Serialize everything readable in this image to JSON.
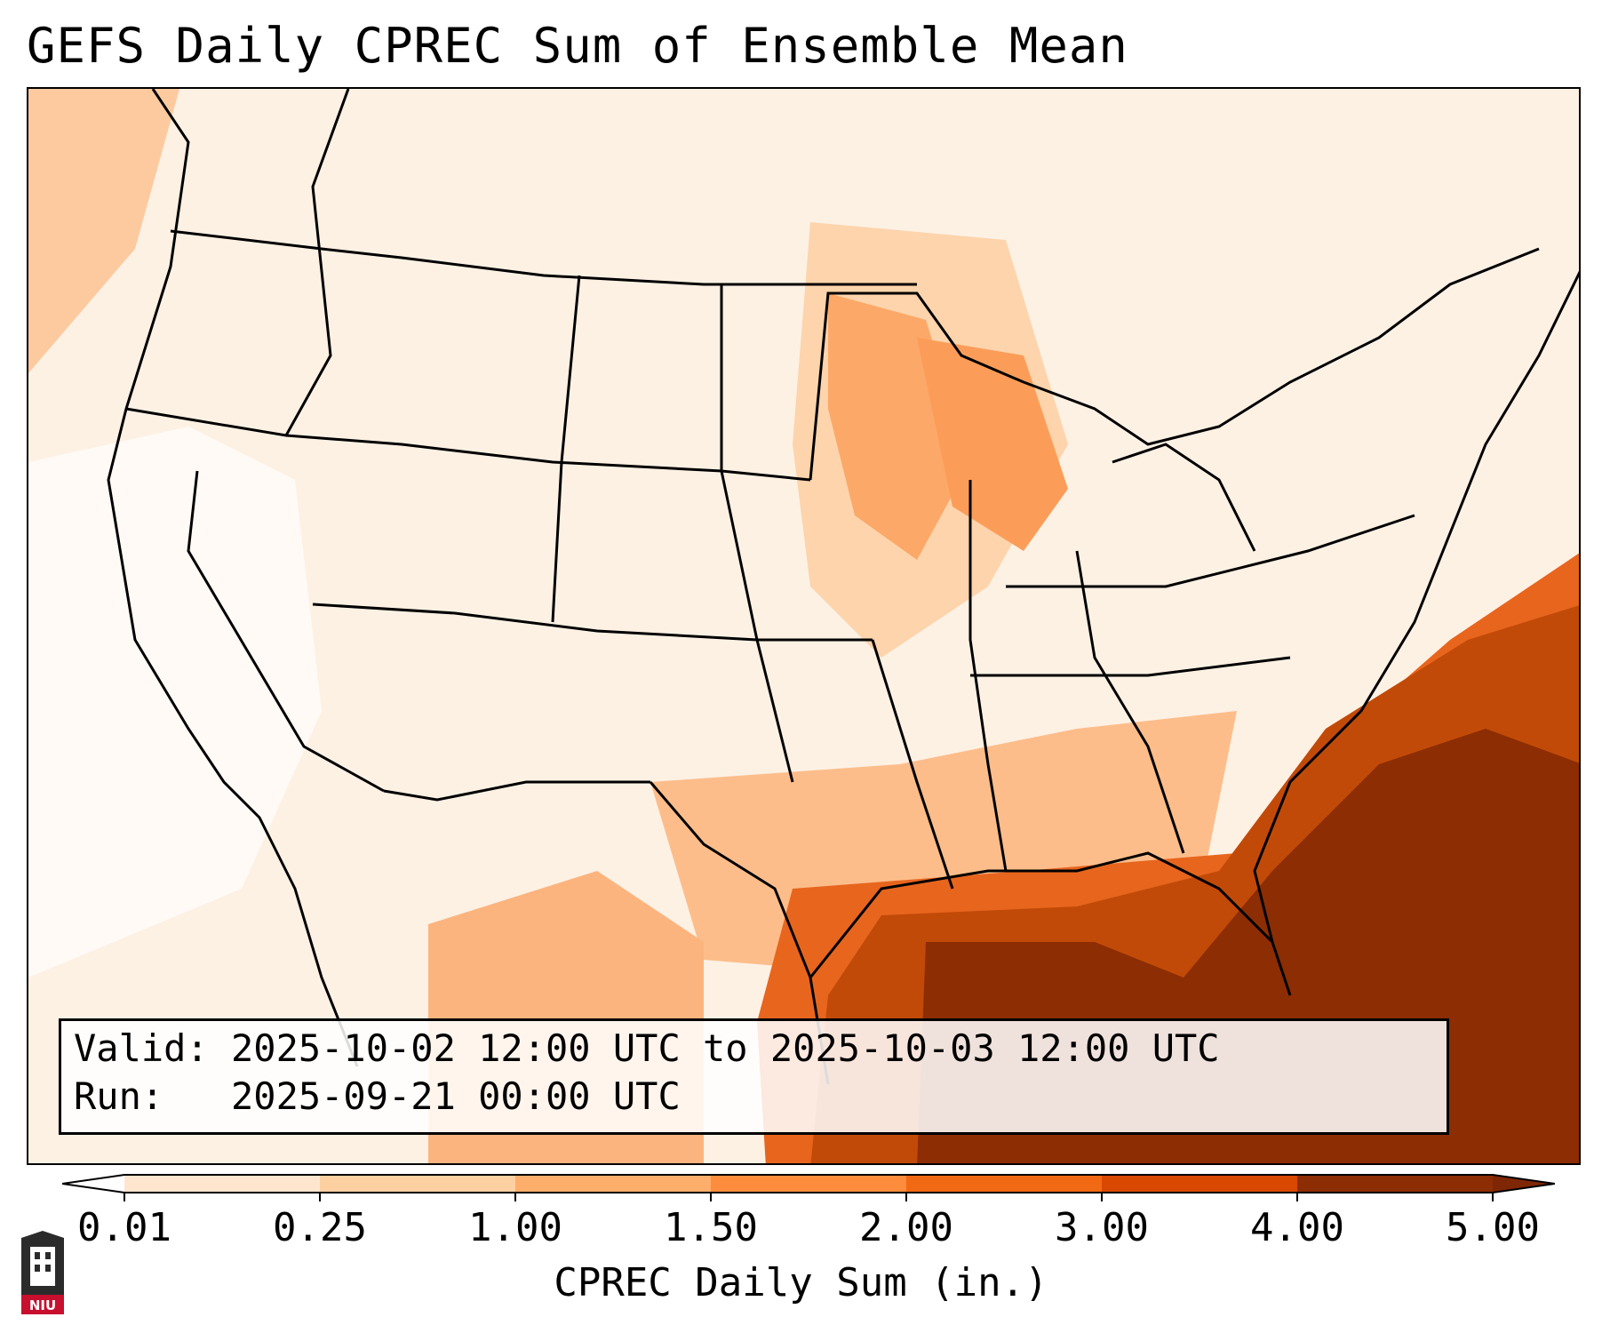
{
  "title": "GEFS Daily CPREC Sum of Ensemble Mean",
  "info": {
    "valid": "Valid: 2025-10-02 12:00 UTC to 2025-10-03 12:00 UTC",
    "run": "Run:   2025-09-21 00:00 UTC"
  },
  "colorbar": {
    "title": "CPREC Daily Sum (in.)",
    "ticks": [
      "0.01",
      "0.25",
      "1.00",
      "1.50",
      "2.00",
      "3.00",
      "4.00",
      "5.00"
    ],
    "colors": [
      "#fff5eb",
      "#fee6ce",
      "#fdd0a2",
      "#fdae6b",
      "#fd8d3c",
      "#f16913",
      "#d94801",
      "#8c2d04"
    ],
    "under_color": "#ffffff",
    "over_color": "#7f2704"
  },
  "logo": {
    "text": "NIU"
  }
}
